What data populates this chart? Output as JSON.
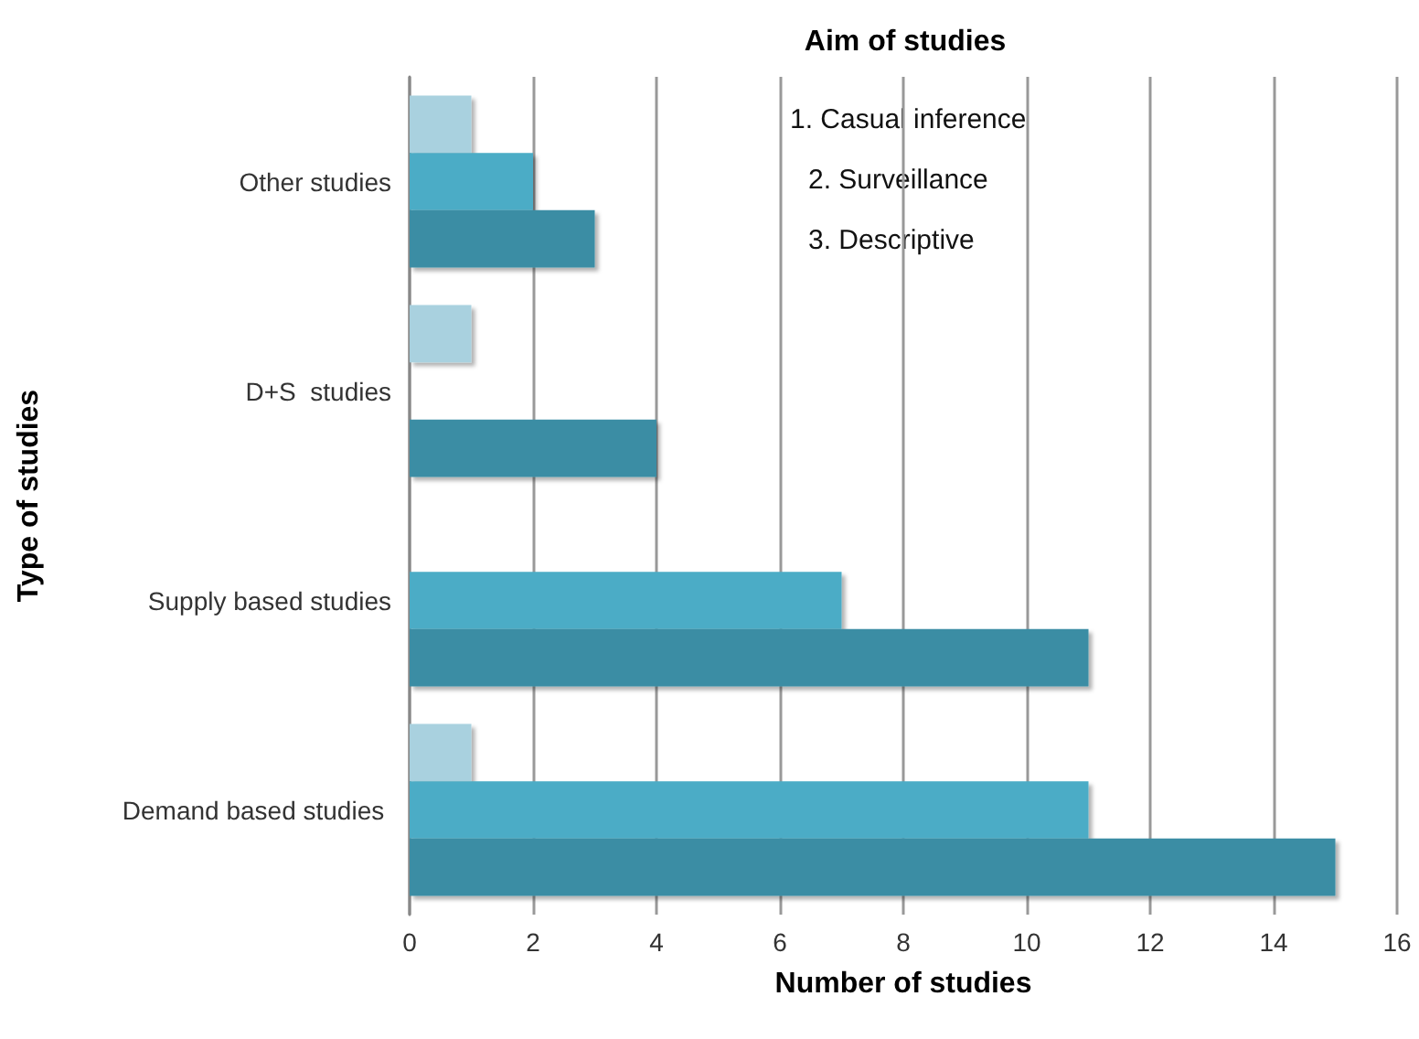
{
  "chart_data": {
    "type": "bar",
    "orientation": "horizontal",
    "title": "Aim of studies",
    "xlabel": "Number of studies",
    "ylabel": "Type of studies",
    "categories": [
      "Other studies",
      "D+S  studies",
      "Supply based studies",
      "Demand based studies "
    ],
    "series": [
      {
        "color": "#a9d1df",
        "values": [
          1,
          1,
          null,
          1
        ]
      },
      {
        "color": "#4bacc6",
        "values": [
          2,
          null,
          7,
          11
        ]
      },
      {
        "color": "#3b8da4",
        "values": [
          3,
          4,
          11,
          15
        ]
      }
    ],
    "xlim": [
      0,
      16
    ],
    "xticks": [
      0,
      2,
      4,
      6,
      8,
      10,
      12,
      14,
      16
    ],
    "grid": "x",
    "annotations": [
      "1. Casual inference",
      "2. Surveillance",
      "3. Descriptive"
    ]
  }
}
